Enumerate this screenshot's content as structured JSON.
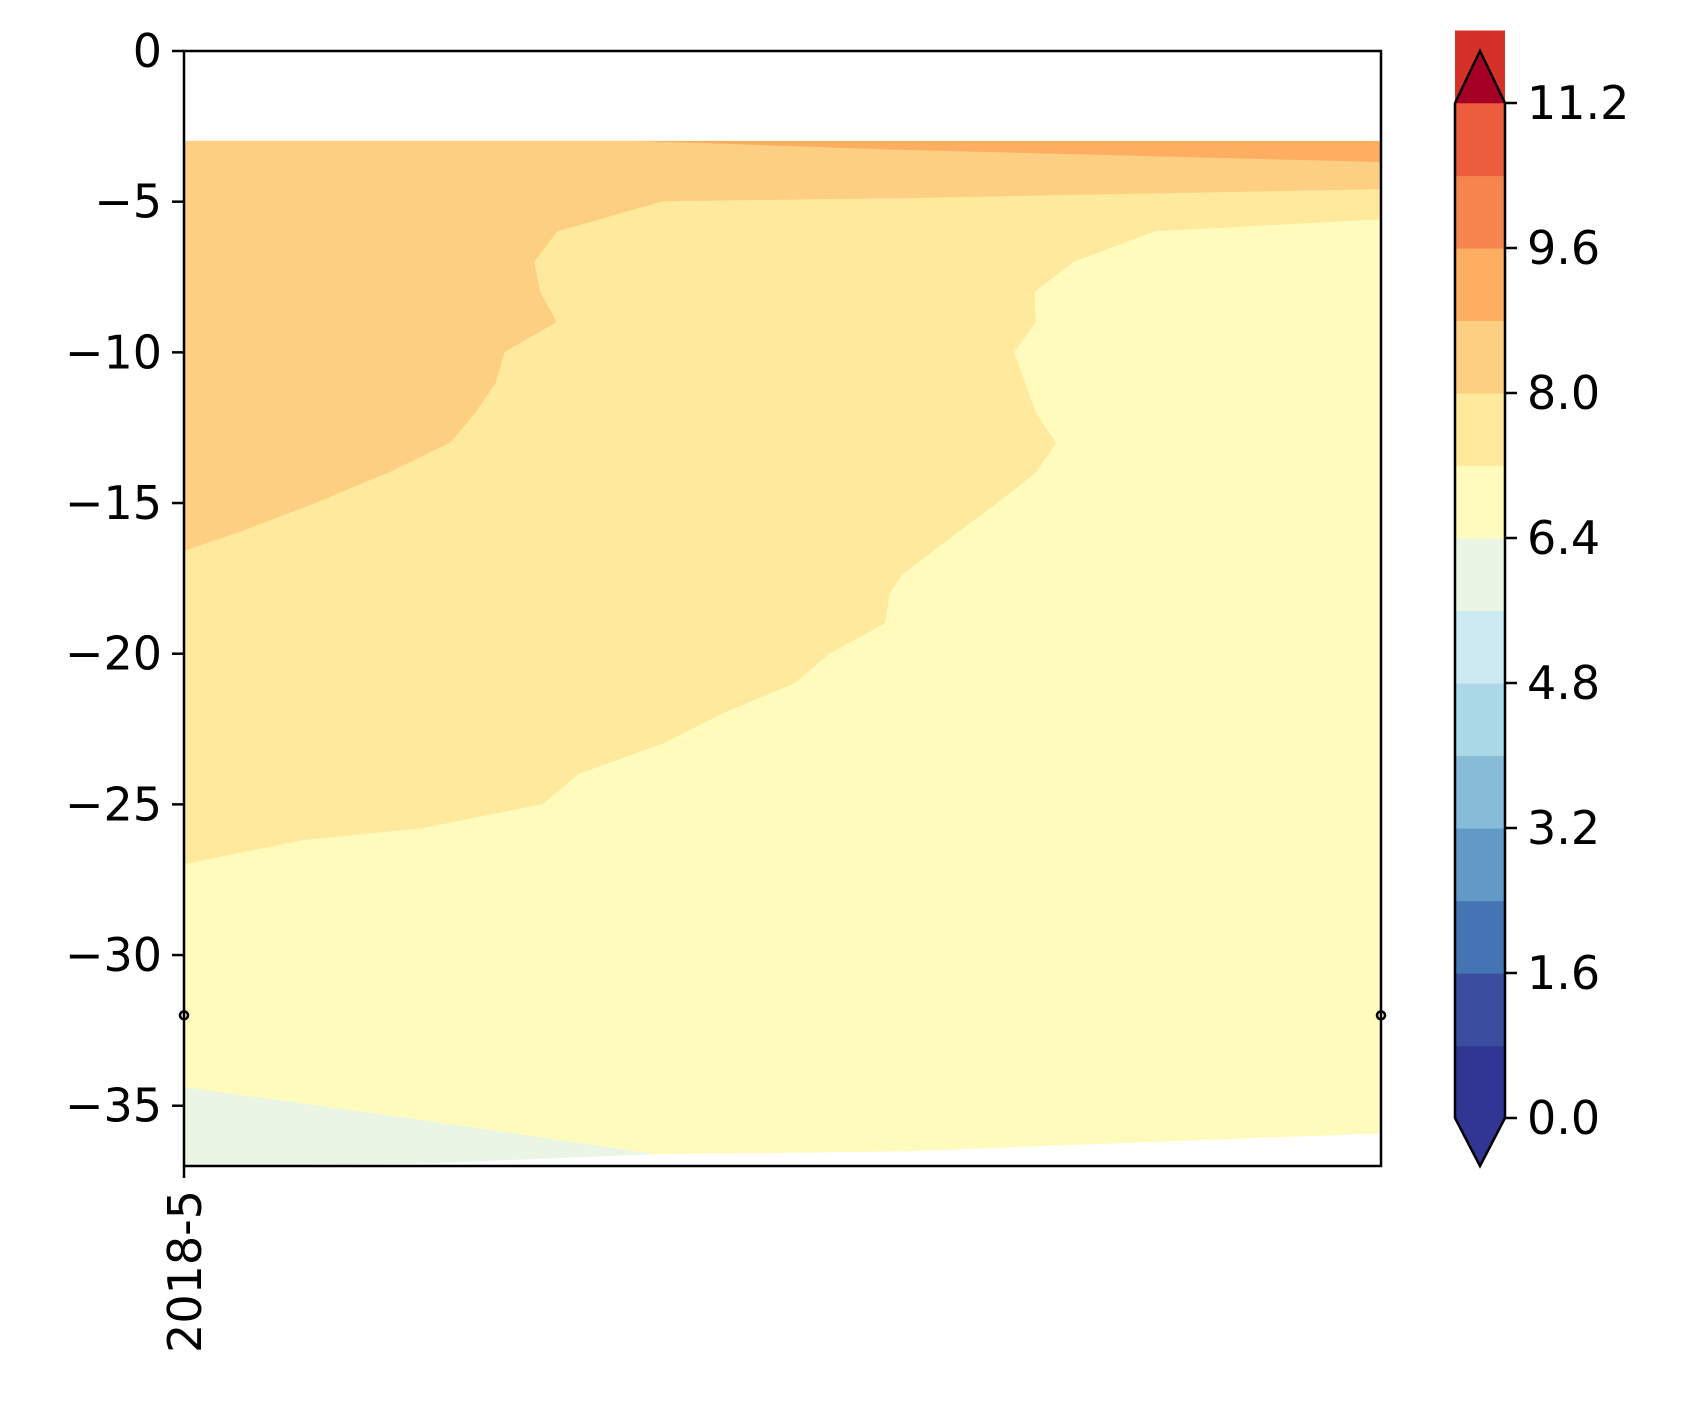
{
  "chart_data": {
    "type": "contourf",
    "title": "",
    "xlabel": "",
    "ylabel": "",
    "xlim": [
      0,
      1
    ],
    "ylim": [
      -37,
      0
    ],
    "x_ticks": [
      {
        "x": 0,
        "label": "2018-5"
      }
    ],
    "y_ticks": [
      {
        "value": 0,
        "label": "0"
      },
      {
        "value": -5,
        "label": "−5"
      },
      {
        "value": -10,
        "label": "−10"
      },
      {
        "value": -15,
        "label": "−15"
      },
      {
        "value": -20,
        "label": "−20"
      },
      {
        "value": -25,
        "label": "−25"
      },
      {
        "value": -30,
        "label": "−30"
      },
      {
        "value": -35,
        "label": "−35"
      }
    ],
    "data_extent": {
      "top": -3,
      "bottom": -37
    },
    "markers": [
      {
        "x": 0,
        "y": -32
      },
      {
        "x": 1,
        "y": -32
      }
    ],
    "regions": [
      {
        "level": "8.0-8.8",
        "color": "#fdae61",
        "points": [
          [
            0.378,
            -3
          ],
          [
            1,
            -3
          ],
          [
            1,
            -3.7
          ],
          [
            0.6,
            -3.3
          ]
        ]
      },
      {
        "level": "7.2-8.0",
        "color": "#fdcf83",
        "points": [
          [
            0,
            -3
          ],
          [
            0.378,
            -3
          ],
          [
            0.6,
            -3.3
          ],
          [
            1,
            -3.7
          ],
          [
            1,
            -4.6
          ],
          [
            0.6,
            -4.9
          ],
          [
            0.4,
            -5
          ],
          [
            0.312,
            -6
          ],
          [
            0.293,
            -7
          ],
          [
            0.298,
            -8
          ],
          [
            0.312,
            -9
          ],
          [
            0.268,
            -10
          ],
          [
            0.261,
            -11
          ],
          [
            0.244,
            -12
          ],
          [
            0.223,
            -13
          ],
          [
            0.171,
            -14
          ],
          [
            0.111,
            -15
          ],
          [
            0.045,
            -16
          ],
          [
            0,
            -16.6
          ]
        ]
      },
      {
        "level": "6.4-7.2",
        "color": "#fee99d",
        "points": [
          [
            0,
            -16.6
          ],
          [
            0.045,
            -16
          ],
          [
            0.111,
            -15
          ],
          [
            0.171,
            -14
          ],
          [
            0.223,
            -13
          ],
          [
            0.244,
            -12
          ],
          [
            0.261,
            -11
          ],
          [
            0.268,
            -10
          ],
          [
            0.312,
            -9
          ],
          [
            0.298,
            -8
          ],
          [
            0.293,
            -7
          ],
          [
            0.312,
            -6
          ],
          [
            0.4,
            -5
          ],
          [
            0.6,
            -4.9
          ],
          [
            1,
            -4.6
          ],
          [
            1,
            -5.6
          ],
          [
            0.811,
            -6
          ],
          [
            0.744,
            -7
          ],
          [
            0.711,
            -8
          ],
          [
            0.712,
            -9
          ],
          [
            0.694,
            -10
          ],
          [
            0.712,
            -12
          ],
          [
            0.729,
            -13
          ],
          [
            0.712,
            -14
          ],
          [
            0.68,
            -15
          ],
          [
            0.646,
            -16
          ],
          [
            0.6,
            -17.4
          ],
          [
            0.59,
            -18
          ],
          [
            0.586,
            -19
          ],
          [
            0.54,
            -20
          ],
          [
            0.51,
            -21
          ],
          [
            0.45,
            -22
          ],
          [
            0.4,
            -23
          ],
          [
            0.33,
            -24
          ],
          [
            0.3,
            -25
          ],
          [
            0.2,
            -25.8
          ],
          [
            0.1,
            -26.2
          ],
          [
            0,
            -27
          ]
        ]
      },
      {
        "level": "5.6-6.4",
        "color": "#fefbbc",
        "points": [
          [
            0,
            -27
          ],
          [
            0.1,
            -26.2
          ],
          [
            0.2,
            -25.8
          ],
          [
            0.3,
            -25
          ],
          [
            0.33,
            -24
          ],
          [
            0.4,
            -23
          ],
          [
            0.45,
            -22
          ],
          [
            0.51,
            -21
          ],
          [
            0.54,
            -20
          ],
          [
            0.586,
            -19
          ],
          [
            0.59,
            -18
          ],
          [
            0.6,
            -17.4
          ],
          [
            0.646,
            -16
          ],
          [
            0.68,
            -15
          ],
          [
            0.712,
            -14
          ],
          [
            0.729,
            -13
          ],
          [
            0.712,
            -12
          ],
          [
            0.694,
            -10
          ],
          [
            0.712,
            -9
          ],
          [
            0.711,
            -8
          ],
          [
            0.744,
            -7
          ],
          [
            0.811,
            -6
          ],
          [
            1,
            -5.6
          ],
          [
            1,
            -35.9
          ],
          [
            0.6,
            -36.5
          ],
          [
            0.39,
            -36.6
          ],
          [
            0.2,
            -35.5
          ],
          [
            0,
            -34.4
          ]
        ]
      },
      {
        "level": "4.8-5.6",
        "color": "#ebf5e6",
        "points": [
          [
            0,
            -34.4
          ],
          [
            0.2,
            -35.5
          ],
          [
            0.39,
            -36.6
          ],
          [
            0.2,
            -36.9
          ],
          [
            0,
            -37
          ]
        ]
      }
    ],
    "colorbar": {
      "min": 0.0,
      "max": 11.2,
      "step": 0.8,
      "extend": "both",
      "tick_labels": [
        {
          "value": 0.0,
          "label": "0.0"
        },
        {
          "value": 1.6,
          "label": "1.6"
        },
        {
          "value": 3.2,
          "label": "3.2"
        },
        {
          "value": 4.8,
          "label": "4.8"
        },
        {
          "value": 6.4,
          "label": "6.4"
        },
        {
          "value": 8.0,
          "label": "8.0"
        },
        {
          "value": 9.6,
          "label": "9.6"
        },
        {
          "value": 11.2,
          "label": "11.2"
        }
      ],
      "colors": [
        "#313695",
        "#3a4d9e",
        "#4574b4",
        "#6399c6",
        "#87bcd9",
        "#abd8e7",
        "#cde9f1",
        "#ebf5e6",
        "#fefbbc",
        "#fee99d",
        "#fdcf83",
        "#fdae61",
        "#f5844f",
        "#ec5c3f",
        "#d6302a"
      ],
      "under_color": "#313695",
      "over_color": "#a50026"
    }
  }
}
